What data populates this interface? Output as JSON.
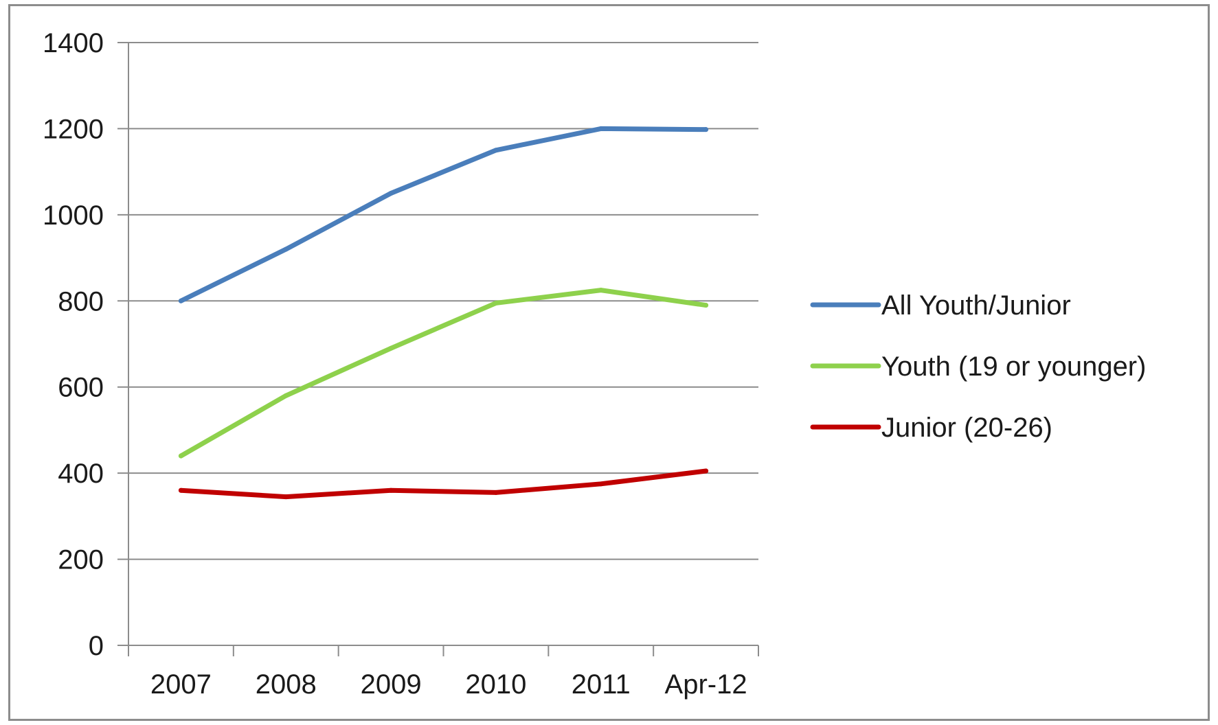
{
  "chart_data": {
    "type": "line",
    "categories": [
      "2007",
      "2008",
      "2009",
      "2010",
      "2011",
      "Apr-12"
    ],
    "series": [
      {
        "name": "All Youth/Junior",
        "color": "#4a7ebb",
        "values": [
          800,
          920,
          1050,
          1150,
          1200,
          1198
        ]
      },
      {
        "name": "Youth (19 or younger)",
        "color": "#8ed14c",
        "values": [
          440,
          580,
          690,
          795,
          825,
          790
        ]
      },
      {
        "name": "Junior (20-26)",
        "color": "#c00000",
        "values": [
          360,
          345,
          360,
          355,
          375,
          405
        ]
      }
    ],
    "ylim": [
      0,
      1400
    ],
    "yticks": [
      0,
      200,
      400,
      600,
      800,
      1000,
      1200,
      1400
    ],
    "grid": true,
    "legend_position": "right",
    "title": "",
    "xlabel": "",
    "ylabel": ""
  }
}
